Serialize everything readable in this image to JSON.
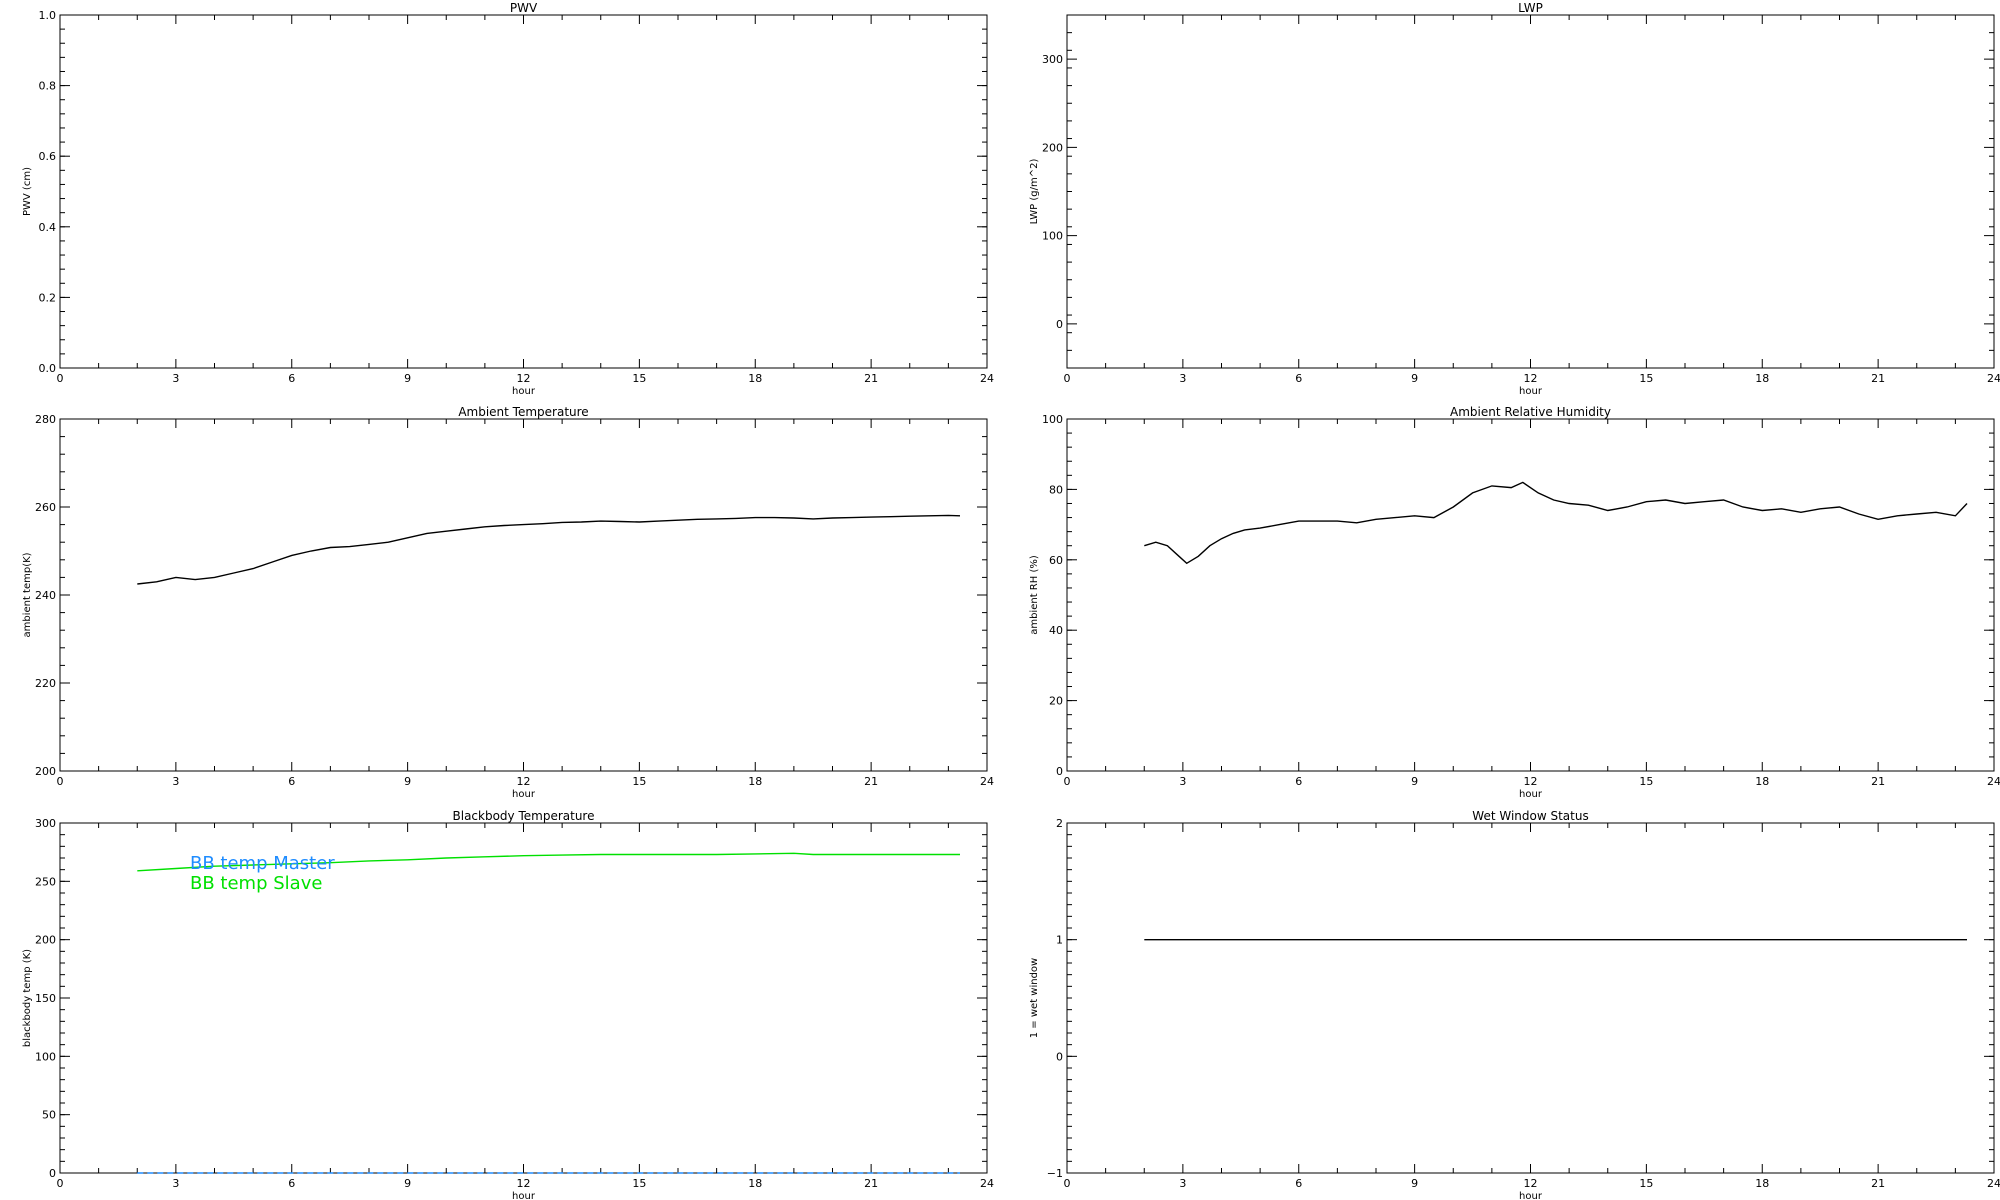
{
  "chart_data": [
    {
      "type": "line",
      "title": "PWV",
      "xlabel": "hour",
      "ylabel": "PWV (cm)",
      "xlim": [
        0,
        24
      ],
      "ylim": [
        0,
        1
      ],
      "x_ticks": [
        0,
        3,
        6,
        9,
        12,
        15,
        18,
        21,
        24
      ],
      "x_tick_labels": [
        "0",
        "3",
        "6",
        "9",
        "12",
        "15",
        "18",
        "21",
        "24"
      ],
      "y_ticks": [
        0,
        0.2,
        0.4,
        0.6,
        0.8,
        1.0
      ],
      "y_tick_labels": [
        "0.0",
        "0.2",
        "0.4",
        "0.6",
        "0.8",
        "1.0"
      ],
      "y_minor": 0.04,
      "series": []
    },
    {
      "type": "line",
      "title": "LWP",
      "xlabel": "hour",
      "ylabel": "LWP (g/m^2)",
      "xlim": [
        0,
        24
      ],
      "ylim": [
        -50,
        350
      ],
      "x_ticks": [
        0,
        3,
        6,
        9,
        12,
        15,
        18,
        21,
        24
      ],
      "x_tick_labels": [
        "0",
        "3",
        "6",
        "9",
        "12",
        "15",
        "18",
        "21",
        "24"
      ],
      "y_ticks": [
        0,
        100,
        200,
        300
      ],
      "y_tick_labels": [
        "0",
        "100",
        "200",
        "300"
      ],
      "y_minor": 20,
      "series": []
    },
    {
      "type": "line",
      "title": "Ambient Temperature",
      "xlabel": "hour",
      "ylabel": "ambient temp(K)",
      "xlim": [
        0,
        24
      ],
      "ylim": [
        200,
        280
      ],
      "x_ticks": [
        0,
        3,
        6,
        9,
        12,
        15,
        18,
        21,
        24
      ],
      "x_tick_labels": [
        "0",
        "3",
        "6",
        "9",
        "12",
        "15",
        "18",
        "21",
        "24"
      ],
      "y_ticks": [
        200,
        220,
        240,
        260,
        280
      ],
      "y_tick_labels": [
        "200",
        "220",
        "240",
        "260",
        "280"
      ],
      "y_minor": 4,
      "series": [
        {
          "color": "#000000",
          "x": [
            2.0,
            2.5,
            3.0,
            3.5,
            4.0,
            4.5,
            5.0,
            5.5,
            6.0,
            6.5,
            7.0,
            7.5,
            8.0,
            8.5,
            9.0,
            9.5,
            10.0,
            10.5,
            11.0,
            11.5,
            12.0,
            12.5,
            13.0,
            13.5,
            14.0,
            14.5,
            15.0,
            15.5,
            16.0,
            16.5,
            17.0,
            17.5,
            18.0,
            18.5,
            19.0,
            19.5,
            20.0,
            20.5,
            21.0,
            21.5,
            22.0,
            22.5,
            23.0,
            23.3
          ],
          "y": [
            242.5,
            243.0,
            244.0,
            243.5,
            244.0,
            245.0,
            246.0,
            247.5,
            249.0,
            250.0,
            250.8,
            251.0,
            251.5,
            252.0,
            253.0,
            254.0,
            254.5,
            255.0,
            255.5,
            255.8,
            256.0,
            256.2,
            256.5,
            256.6,
            256.8,
            256.7,
            256.6,
            256.8,
            257.0,
            257.2,
            257.3,
            257.4,
            257.6,
            257.6,
            257.5,
            257.3,
            257.5,
            257.6,
            257.7,
            257.8,
            257.9,
            258.0,
            258.1,
            258.0
          ]
        }
      ]
    },
    {
      "type": "line",
      "title": "Ambient Relative Humidity",
      "xlabel": "hour",
      "ylabel": "ambient RH (%)",
      "xlim": [
        0,
        24
      ],
      "ylim": [
        0,
        100
      ],
      "x_ticks": [
        0,
        3,
        6,
        9,
        12,
        15,
        18,
        21,
        24
      ],
      "x_tick_labels": [
        "0",
        "3",
        "6",
        "9",
        "12",
        "15",
        "18",
        "21",
        "24"
      ],
      "y_ticks": [
        0,
        20,
        40,
        60,
        80,
        100
      ],
      "y_tick_labels": [
        "0",
        "20",
        "40",
        "60",
        "80",
        "100"
      ],
      "y_minor": 4,
      "series": [
        {
          "color": "#000000",
          "x": [
            2.0,
            2.3,
            2.6,
            2.9,
            3.1,
            3.4,
            3.7,
            4.0,
            4.3,
            4.6,
            5.0,
            5.5,
            6.0,
            6.5,
            7.0,
            7.5,
            8.0,
            8.5,
            9.0,
            9.5,
            10.0,
            10.5,
            11.0,
            11.5,
            11.8,
            12.2,
            12.6,
            13.0,
            13.5,
            14.0,
            14.5,
            15.0,
            15.5,
            16.0,
            16.5,
            17.0,
            17.5,
            18.0,
            18.5,
            19.0,
            19.5,
            20.0,
            20.5,
            21.0,
            21.5,
            22.0,
            22.5,
            23.0,
            23.3
          ],
          "y": [
            64.0,
            65.0,
            64.0,
            61.0,
            59.0,
            61.0,
            64.0,
            66.0,
            67.5,
            68.5,
            69.0,
            70.0,
            71.0,
            71.0,
            71.0,
            70.5,
            71.5,
            72.0,
            72.5,
            72.0,
            75.0,
            79.0,
            81.0,
            80.5,
            82.0,
            79.0,
            77.0,
            76.0,
            75.5,
            74.0,
            75.0,
            76.5,
            77.0,
            76.0,
            76.5,
            77.0,
            75.0,
            74.0,
            74.5,
            73.5,
            74.5,
            75.0,
            73.0,
            71.5,
            72.5,
            73.0,
            73.5,
            72.5,
            76.0
          ]
        }
      ]
    },
    {
      "type": "line",
      "title": "Blackbody Temperature",
      "xlabel": "hour",
      "ylabel": "blackbody temp (K)",
      "xlim": [
        0,
        24
      ],
      "ylim": [
        0,
        300
      ],
      "x_ticks": [
        0,
        3,
        6,
        9,
        12,
        15,
        18,
        21,
        24
      ],
      "x_tick_labels": [
        "0",
        "3",
        "6",
        "9",
        "12",
        "15",
        "18",
        "21",
        "24"
      ],
      "y_ticks": [
        0,
        50,
        100,
        150,
        200,
        250,
        300
      ],
      "y_tick_labels": [
        "0",
        "50",
        "100",
        "150",
        "200",
        "250",
        "300"
      ],
      "y_minor": 10,
      "legend": [
        "BB temp Master",
        "BB temp Slave"
      ],
      "legend_position": "top-left",
      "series": [
        {
          "name": "BB temp Master",
          "color": "#1e8cff",
          "x": [
            2.0,
            4.0,
            6.0,
            8.0,
            10.0,
            12.0,
            14.0,
            16.0,
            18.0,
            20.0,
            22.0,
            23.3
          ],
          "y": [
            0,
            0,
            0,
            0,
            0,
            0,
            0,
            0,
            0,
            0,
            0,
            0
          ]
        },
        {
          "name": "BB temp Slave",
          "color": "#00e000",
          "x": [
            2.0,
            3.0,
            4.0,
            5.0,
            6.0,
            7.0,
            8.0,
            9.0,
            10.0,
            11.0,
            12.0,
            13.0,
            14.0,
            15.0,
            16.0,
            17.0,
            18.0,
            19.0,
            19.5,
            20.0,
            21.0,
            22.0,
            23.3
          ],
          "y": [
            259,
            261,
            263,
            264,
            265,
            266,
            267.5,
            268.5,
            270,
            271,
            272,
            272.5,
            273,
            273,
            273,
            273,
            273.5,
            274,
            273,
            273,
            273,
            273,
            273
          ]
        }
      ]
    },
    {
      "type": "line",
      "title": "Wet Window Status",
      "xlabel": "hour",
      "ylabel": "1 = wet window",
      "xlim": [
        0,
        24
      ],
      "ylim": [
        -1,
        2
      ],
      "x_ticks": [
        0,
        3,
        6,
        9,
        12,
        15,
        18,
        21,
        24
      ],
      "x_tick_labels": [
        "0",
        "3",
        "6",
        "9",
        "12",
        "15",
        "18",
        "21",
        "24"
      ],
      "y_ticks": [
        -1,
        0,
        1,
        2
      ],
      "y_tick_labels": [
        "−1",
        "0",
        "1",
        "2"
      ],
      "y_minor": 0.1,
      "series": [
        {
          "color": "#000000",
          "x": [
            2.0,
            23.3
          ],
          "y": [
            1,
            1
          ]
        }
      ]
    }
  ]
}
